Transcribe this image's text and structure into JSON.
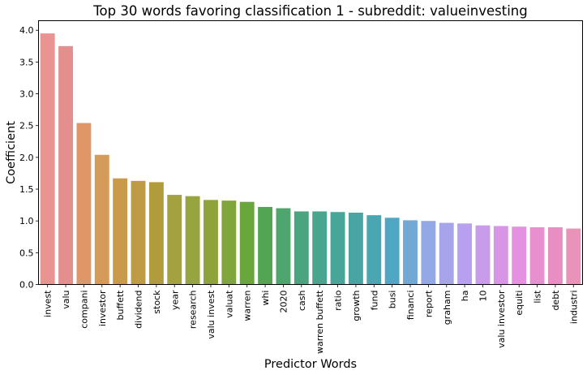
{
  "chart_data": {
    "type": "bar",
    "title": "Top 30 words favoring classification 1 - subreddit: valueinvesting",
    "xlabel": "Predictor Words",
    "ylabel": "Coefficient",
    "ylim": [
      0,
      4.15
    ],
    "yticks": [
      "0.0",
      "0.5",
      "1.0",
      "1.5",
      "2.0",
      "2.5",
      "3.0",
      "3.5",
      "4.0"
    ],
    "grid": false,
    "categories": [
      "invest",
      "valu",
      "compani",
      "investor",
      "buffett",
      "dividend",
      "stock",
      "year",
      "research",
      "valu invest",
      "valuat",
      "warren",
      "whi",
      "2020",
      "cash",
      "warren buffett",
      "ratio",
      "growth",
      "fund",
      "busi",
      "financi",
      "report",
      "graham",
      "ha",
      "10",
      "valu investor",
      "equiti",
      "list",
      "debt",
      "industri"
    ],
    "values": [
      3.95,
      3.75,
      2.54,
      2.04,
      1.67,
      1.63,
      1.61,
      1.41,
      1.39,
      1.33,
      1.32,
      1.3,
      1.22,
      1.2,
      1.15,
      1.15,
      1.14,
      1.13,
      1.09,
      1.05,
      1.01,
      1.0,
      0.97,
      0.96,
      0.93,
      0.92,
      0.91,
      0.9,
      0.9,
      0.88
    ],
    "colors": [
      "#ea9393",
      "#e58e8e",
      "#e09768",
      "#d59b58",
      "#c99a4a",
      "#bd9c45",
      "#b09c3c",
      "#a3a140",
      "#98a43d",
      "#8ea33a",
      "#80a63b",
      "#6ba63d",
      "#52a653",
      "#4ea66e",
      "#49a580",
      "#47a68d",
      "#46a698",
      "#48a5a4",
      "#4aa7b1",
      "#50a7c3",
      "#72a8d4",
      "#93a9e6",
      "#a6a5ec",
      "#b7a0ee",
      "#c99ceb",
      "#d895e6",
      "#e591df",
      "#e88fd0",
      "#e98ec2",
      "#e893b7"
    ]
  }
}
